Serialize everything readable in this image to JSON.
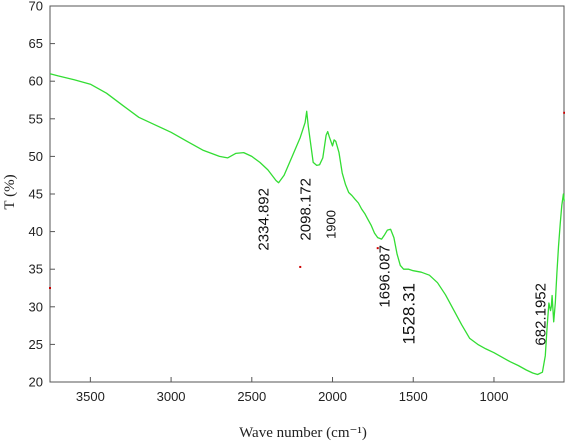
{
  "chart_data": {
    "type": "line",
    "title": "",
    "xlabel": "Wave number (cm⁻¹)",
    "ylabel": "T (%)",
    "xlim": [
      3750,
      560
    ],
    "ylim": [
      20,
      70
    ],
    "x_reversed": true,
    "grid": false,
    "xticks": [
      "3500",
      "3000",
      "2500",
      "2000",
      "1500",
      "1000"
    ],
    "xtick_values": [
      3500,
      3000,
      2500,
      2000,
      1500,
      1000
    ],
    "yticks": [
      "20",
      "25",
      "30",
      "35",
      "40",
      "45",
      "50",
      "55",
      "60",
      "65",
      "70"
    ],
    "ytick_values": [
      20,
      25,
      30,
      35,
      40,
      45,
      50,
      55,
      60,
      65,
      70
    ],
    "line_color": "#33dd33",
    "marker_color": "#cc0000",
    "series": [
      {
        "x": [
          3750,
          3700,
          3600,
          3500,
          3400,
          3300,
          3200,
          3100,
          3000,
          2900,
          2800,
          2700,
          2650,
          2600,
          2550,
          2500,
          2450,
          2400,
          2350,
          2334,
          2300,
          2250,
          2200,
          2170,
          2160,
          2150,
          2120,
          2098,
          2080,
          2060,
          2040,
          2030,
          2020,
          2000,
          1990,
          1980,
          1960,
          1940,
          1920,
          1900,
          1880,
          1860,
          1840,
          1820,
          1800,
          1780,
          1760,
          1740,
          1720,
          1696,
          1680,
          1660,
          1640,
          1620,
          1600,
          1580,
          1560,
          1540,
          1528,
          1500,
          1450,
          1400,
          1350,
          1300,
          1250,
          1200,
          1150,
          1100,
          1050,
          1000,
          950,
          900,
          850,
          800,
          760,
          730,
          700,
          682,
          670,
          660,
          650,
          645,
          640,
          630,
          620,
          610,
          600,
          590,
          580,
          570,
          565
        ],
        "y": [
          61.0,
          60.7,
          60.2,
          59.6,
          58.4,
          56.8,
          55.2,
          54.2,
          53.2,
          52.0,
          50.8,
          50.0,
          49.8,
          50.4,
          50.5,
          50.0,
          49.2,
          48.2,
          46.8,
          46.5,
          47.5,
          50.0,
          52.5,
          54.5,
          56.0,
          54.0,
          49.2,
          48.8,
          48.9,
          49.8,
          52.8,
          53.3,
          52.6,
          51.4,
          52.2,
          52.0,
          50.5,
          47.8,
          46.3,
          45.2,
          44.8,
          44.3,
          43.8,
          43.0,
          42.4,
          41.6,
          40.8,
          39.8,
          39.2,
          39.0,
          39.5,
          40.2,
          40.3,
          39.2,
          37.0,
          35.5,
          35.0,
          35.0,
          35.0,
          34.8,
          34.6,
          34.2,
          33.2,
          31.6,
          29.6,
          27.6,
          25.8,
          25.0,
          24.4,
          23.9,
          23.3,
          22.7,
          22.2,
          21.6,
          21.2,
          21.0,
          21.3,
          23.5,
          27.5,
          30.5,
          29.5,
          30.0,
          31.5,
          28.0,
          30.5,
          34.5,
          38.0,
          41.0,
          43.5,
          45.0,
          44.0
        ]
      }
    ],
    "annotations": [
      {
        "text": "2334.892",
        "x": 2334.892
      },
      {
        "text": "2098.172",
        "x": 2098.172
      },
      {
        "text": "1900",
        "x": 1900
      },
      {
        "text": "1696.087",
        "x": 1696.087
      },
      {
        "text": "1528.31",
        "x": 1528.31
      },
      {
        "text": "682.1952",
        "x": 682.1952
      }
    ],
    "stray_markers": [
      {
        "x": 3750,
        "y": 32.5
      },
      {
        "x": 2200,
        "y": 35.3
      },
      {
        "x": 1720,
        "y": 37.8
      },
      {
        "x": 565,
        "y": 55.8
      }
    ]
  }
}
